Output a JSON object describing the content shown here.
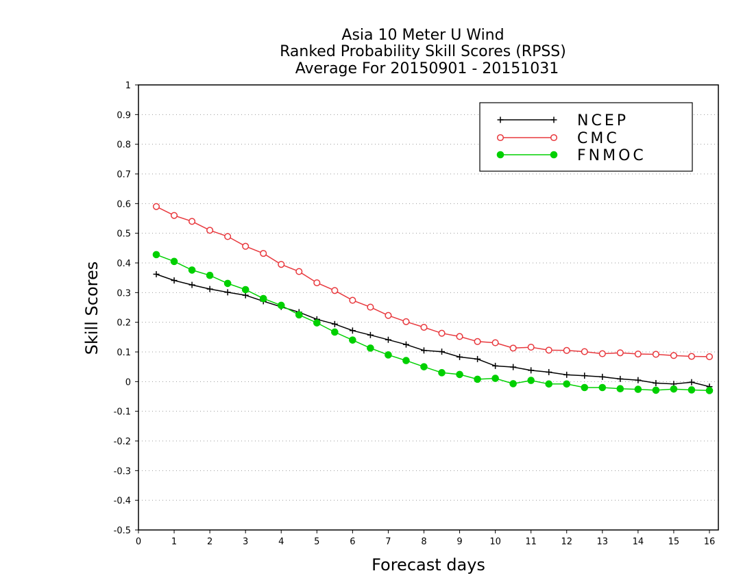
{
  "chart_data": {
    "type": "line",
    "title_lines": [
      "Asia 10 Meter U Wind",
      "Ranked Probability Skill Scores (RPSS)",
      "Average For 20150901 - 20151031"
    ],
    "xlabel": "Forecast days",
    "ylabel": "Skill Scores",
    "xlim": [
      0,
      16.25
    ],
    "ylim": [
      -0.5,
      1
    ],
    "xticks": [
      0,
      1,
      2,
      3,
      4,
      5,
      6,
      7,
      8,
      9,
      10,
      11,
      12,
      13,
      14,
      15,
      16
    ],
    "xtick_labels": [
      "0",
      "1",
      "2",
      "3",
      "4",
      "5",
      "6",
      "7",
      "8",
      "9",
      "10",
      "11",
      "12",
      "13",
      "14",
      "15",
      "16"
    ],
    "yticks": [
      -0.5,
      -0.4,
      -0.3,
      -0.2,
      -0.1,
      0,
      0.1,
      0.2,
      0.3,
      0.4,
      0.5,
      0.6,
      0.7,
      0.8,
      0.9,
      1
    ],
    "ytick_labels": [
      "-0.5",
      "-0.4",
      "-0.3",
      "-0.2",
      "-0.1",
      "0",
      "0.1",
      "0.2",
      "0.3",
      "0.4",
      "0.5",
      "0.6",
      "0.7",
      "0.8",
      "0.9",
      "1"
    ],
    "grid": true,
    "legend_position": "top-right",
    "x": [
      0.5,
      1,
      1.5,
      2,
      2.5,
      3,
      3.5,
      4,
      4.5,
      5,
      5.5,
      6,
      6.5,
      7,
      7.5,
      8,
      8.5,
      9,
      9.5,
      10,
      10.5,
      11,
      11.5,
      12,
      12.5,
      13,
      13.5,
      14,
      14.5,
      15,
      15.5,
      16
    ],
    "series": [
      {
        "name": "NCEP",
        "color": "#000000",
        "marker": "plus",
        "values": [
          0.362,
          0.341,
          0.326,
          0.312,
          0.301,
          0.291,
          0.271,
          0.252,
          0.234,
          0.21,
          0.194,
          0.172,
          0.157,
          0.141,
          0.125,
          0.105,
          0.101,
          0.083,
          0.076,
          0.053,
          0.049,
          0.038,
          0.032,
          0.023,
          0.02,
          0.016,
          0.009,
          0.005,
          -0.005,
          -0.008,
          -0.002,
          -0.017
        ]
      },
      {
        "name": "CMC",
        "color": "#e8383d",
        "marker": "open-circle",
        "values": [
          0.59,
          0.56,
          0.54,
          0.51,
          0.489,
          0.456,
          0.432,
          0.395,
          0.371,
          0.333,
          0.307,
          0.274,
          0.251,
          0.223,
          0.202,
          0.183,
          0.163,
          0.152,
          0.135,
          0.131,
          0.113,
          0.116,
          0.106,
          0.105,
          0.101,
          0.094,
          0.097,
          0.093,
          0.092,
          0.088,
          0.085,
          0.084
        ]
      },
      {
        "name": "FNMOC",
        "color": "#00d000",
        "marker": "filled-circle",
        "values": [
          0.428,
          0.405,
          0.376,
          0.358,
          0.331,
          0.31,
          0.28,
          0.257,
          0.225,
          0.198,
          0.167,
          0.14,
          0.113,
          0.09,
          0.071,
          0.05,
          0.03,
          0.024,
          0.008,
          0.011,
          -0.007,
          0.004,
          -0.008,
          -0.008,
          -0.02,
          -0.02,
          -0.024,
          -0.026,
          -0.029,
          -0.025,
          -0.028,
          -0.03
        ]
      }
    ]
  }
}
